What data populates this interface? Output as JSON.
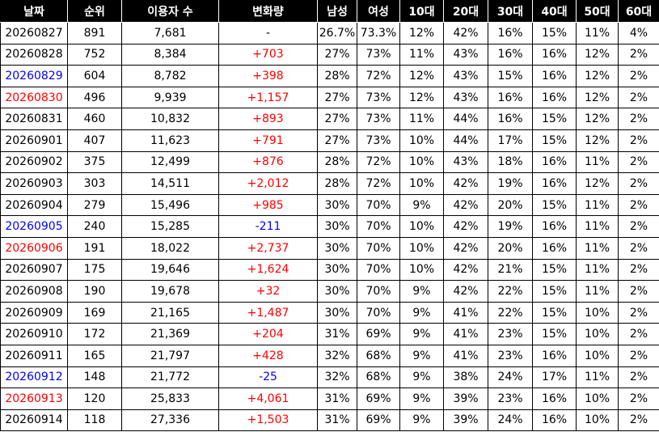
{
  "table": {
    "header": [
      "날짜",
      "순위",
      "이용자 수",
      "변화량",
      "남성",
      "여성",
      "10대",
      "20대",
      "30대",
      "40대",
      "50대",
      "60대"
    ],
    "rows": [
      [
        "20260827",
        "891",
        "7,681",
        "-",
        "26.7%",
        "73.3%",
        "12%",
        "42%",
        "16%",
        "15%",
        "11%",
        "4%"
      ],
      [
        "20260828",
        "752",
        "8,384",
        "+703",
        "27%",
        "73%",
        "11%",
        "43%",
        "16%",
        "16%",
        "12%",
        "2%"
      ],
      [
        "20260829",
        "604",
        "8,782",
        "+398",
        "28%",
        "72%",
        "12%",
        "43%",
        "15%",
        "16%",
        "12%",
        "2%"
      ],
      [
        "20260830",
        "496",
        "9,939",
        "+1,157",
        "27%",
        "73%",
        "12%",
        "43%",
        "16%",
        "16%",
        "12%",
        "2%"
      ],
      [
        "20260831",
        "460",
        "10,832",
        "+893",
        "27%",
        "73%",
        "11%",
        "44%",
        "16%",
        "15%",
        "12%",
        "2%"
      ],
      [
        "20260901",
        "407",
        "11,623",
        "+791",
        "27%",
        "73%",
        "10%",
        "44%",
        "17%",
        "15%",
        "12%",
        "2%"
      ],
      [
        "20260902",
        "375",
        "12,499",
        "+876",
        "28%",
        "72%",
        "10%",
        "43%",
        "18%",
        "16%",
        "11%",
        "2%"
      ],
      [
        "20260903",
        "303",
        "14,511",
        "+2,012",
        "28%",
        "72%",
        "10%",
        "42%",
        "19%",
        "16%",
        "12%",
        "2%"
      ],
      [
        "20260904",
        "279",
        "15,496",
        "+985",
        "30%",
        "70%",
        "9%",
        "42%",
        "20%",
        "15%",
        "11%",
        "2%"
      ],
      [
        "20260905",
        "240",
        "15,285",
        "-211",
        "30%",
        "70%",
        "10%",
        "42%",
        "19%",
        "16%",
        "11%",
        "2%"
      ],
      [
        "20260906",
        "191",
        "18,022",
        "+2,737",
        "30%",
        "70%",
        "10%",
        "42%",
        "20%",
        "16%",
        "11%",
        "2%"
      ],
      [
        "20260907",
        "175",
        "19,646",
        "+1,624",
        "30%",
        "70%",
        "10%",
        "42%",
        "21%",
        "15%",
        "11%",
        "2%"
      ],
      [
        "20260908",
        "190",
        "19,678",
        "+32",
        "30%",
        "70%",
        "9%",
        "42%",
        "22%",
        "15%",
        "11%",
        "2%"
      ],
      [
        "20260909",
        "169",
        "21,165",
        "+1,487",
        "30%",
        "70%",
        "9%",
        "41%",
        "22%",
        "15%",
        "10%",
        "2%"
      ],
      [
        "20260910",
        "172",
        "21,369",
        "+204",
        "31%",
        "69%",
        "9%",
        "41%",
        "23%",
        "15%",
        "10%",
        "2%"
      ],
      [
        "20260911",
        "165",
        "21,797",
        "+428",
        "32%",
        "68%",
        "9%",
        "41%",
        "23%",
        "16%",
        "10%",
        "2%"
      ],
      [
        "20260912",
        "148",
        "21,772",
        "-25",
        "32%",
        "68%",
        "9%",
        "38%",
        "24%",
        "17%",
        "11%",
        "2%"
      ],
      [
        "20260913",
        "120",
        "25,833",
        "+4,061",
        "31%",
        "69%",
        "9%",
        "39%",
        "23%",
        "16%",
        "10%",
        "2%"
      ],
      [
        "20260914",
        "118",
        "27,336",
        "+1,503",
        "31%",
        "69%",
        "9%",
        "39%",
        "24%",
        "16%",
        "10%",
        "2%"
      ]
    ],
    "date_colors": [
      "#000000",
      "#000000",
      "#0000ff",
      "#ff0000",
      "#000000",
      "#000000",
      "#000000",
      "#000000",
      "#000000",
      "#0000ff",
      "#ff0000",
      "#000000",
      "#000000",
      "#000000",
      "#000000",
      "#000000",
      "#0000ff",
      "#ff0000",
      "#000000"
    ],
    "change_colors": [
      "#000000",
      "#ff0000",
      "#ff0000",
      "#ff0000",
      "#ff0000",
      "#ff0000",
      "#ff0000",
      "#ff0000",
      "#ff0000",
      "#0000ff",
      "#ff0000",
      "#ff0000",
      "#ff0000",
      "#ff0000",
      "#ff0000",
      "#ff0000",
      "#0000ff",
      "#ff0000",
      "#ff0000"
    ]
  }
}
